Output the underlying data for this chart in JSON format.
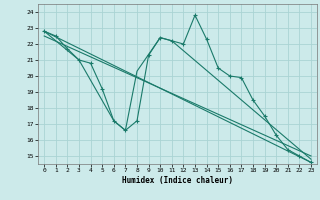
{
  "xlabel": "Humidex (Indice chaleur)",
  "ylabel": "",
  "bg_color": "#cceaea",
  "grid_color": "#aad4d4",
  "line_color": "#1a7a6a",
  "xlim": [
    -0.5,
    23.5
  ],
  "ylim": [
    14.5,
    24.5
  ],
  "yticks": [
    15,
    16,
    17,
    18,
    19,
    20,
    21,
    22,
    23,
    24
  ],
  "xticks": [
    0,
    1,
    2,
    3,
    4,
    5,
    6,
    7,
    8,
    9,
    10,
    11,
    12,
    13,
    14,
    15,
    16,
    17,
    18,
    19,
    20,
    21,
    22,
    23
  ],
  "line1_x": [
    0,
    1,
    2,
    3,
    4,
    5,
    6,
    7,
    8,
    9,
    10,
    11,
    12,
    13,
    14,
    15,
    16,
    17,
    18,
    19,
    20,
    21,
    22,
    23
  ],
  "line1_y": [
    22.8,
    22.5,
    21.7,
    21.0,
    20.8,
    19.2,
    17.2,
    16.6,
    17.2,
    21.3,
    22.4,
    22.2,
    22.0,
    23.8,
    22.3,
    20.5,
    20.0,
    19.9,
    18.5,
    17.5,
    16.3,
    15.4,
    15.0,
    14.6
  ],
  "line2_x": [
    0,
    3,
    6,
    7,
    8,
    10,
    11,
    23
  ],
  "line2_y": [
    22.8,
    21.0,
    17.2,
    16.6,
    20.3,
    22.4,
    22.2,
    14.8
  ],
  "line3_x": [
    0,
    23
  ],
  "line3_y": [
    22.8,
    14.6
  ],
  "line4_x": [
    0,
    23
  ],
  "line4_y": [
    22.5,
    15.0
  ]
}
